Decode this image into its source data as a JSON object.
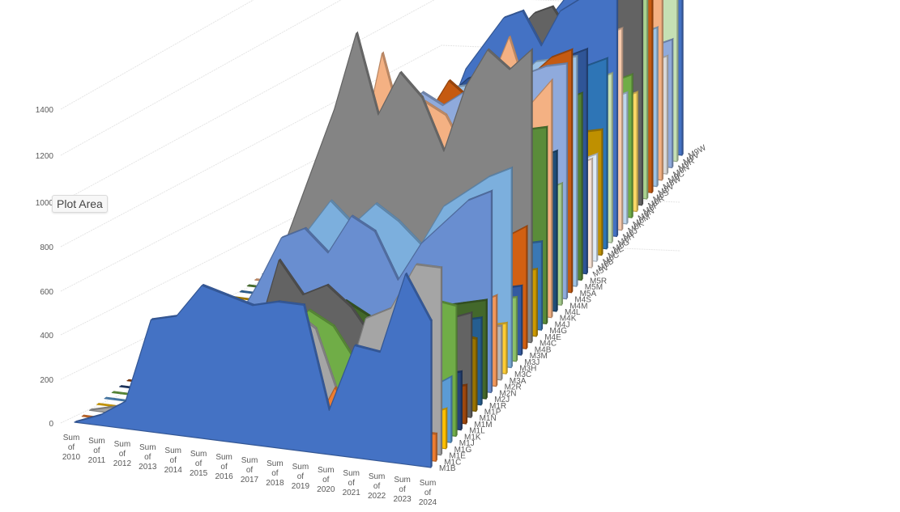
{
  "tooltip": {
    "label": "Plot Area"
  },
  "chart_data": {
    "type": "area",
    "subtype": "3d-area",
    "title": "",
    "xlabel": "",
    "ylabel": "",
    "ylim": [
      0,
      1400
    ],
    "yticks": [
      0,
      200,
      400,
      600,
      800,
      1000,
      1200,
      1400
    ],
    "grid": true,
    "legend": "none",
    "categories": [
      "Sum of 2010",
      "Sum of 2011",
      "Sum of 2012",
      "Sum of 2013",
      "Sum of 2014",
      "Sum of 2015",
      "Sum of 2016",
      "Sum of 2017",
      "Sum of 2018",
      "Sum of 2019",
      "Sum of 2020",
      "Sum of 2021",
      "Sum of 2022",
      "Sum of 2023",
      "Sum of 2024"
    ],
    "depth_labels_visible": [
      "M1B",
      "M1C",
      "M1E",
      "M1G",
      "M1J",
      "M1K",
      "M1L",
      "M1M",
      "M1N",
      "M1P",
      "M1R",
      "M2J",
      "M2N",
      "M2R",
      "M3A",
      "M3C",
      "M3H",
      "M3J",
      "M3M",
      "M4B",
      "M4C",
      "M4E",
      "M4G",
      "M4J",
      "M4K",
      "M4L",
      "M4M",
      "M4S",
      "M5A",
      "M5M",
      "M5R",
      "M5V",
      "M6B",
      "M6C",
      "M6E",
      "M6G",
      "M6H",
      "M6J",
      "M6K",
      "M6M",
      "M6N",
      "M6P",
      "M6R",
      "M6S",
      "M8V",
      "M8W",
      "M9C",
      "M9N",
      "M9R",
      "M9V",
      "M9W"
    ],
    "series": [
      {
        "name": "M1B",
        "color": "#4472C4",
        "values": [
          0,
          30,
          80,
          330,
          350,
          450,
          430,
          410,
          430,
          430,
          130,
          330,
          320,
          560,
          430
        ]
      },
      {
        "name": "M1C",
        "color": "#ED7D31",
        "values": [
          0,
          0,
          10,
          20,
          20,
          30,
          30,
          20,
          40,
          30,
          180,
          60,
          60,
          80,
          80
        ]
      },
      {
        "name": "M1E",
        "color": "#A5A5A5",
        "values": [
          0,
          20,
          60,
          180,
          190,
          330,
          360,
          300,
          380,
          330,
          120,
          380,
          420,
          560,
          560
        ]
      },
      {
        "name": "M1G",
        "color": "#FFC000",
        "values": [
          0,
          0,
          10,
          20,
          30,
          30,
          40,
          40,
          40,
          60,
          40,
          60,
          70,
          90,
          120
        ]
      },
      {
        "name": "M1J",
        "color": "#5B9BD5",
        "values": [
          0,
          0,
          10,
          30,
          40,
          60,
          60,
          50,
          70,
          80,
          60,
          90,
          110,
          150,
          200
        ]
      },
      {
        "name": "M1K",
        "color": "#70AD47",
        "values": [
          0,
          0,
          20,
          40,
          90,
          240,
          290,
          230,
          330,
          290,
          180,
          340,
          370,
          410,
          400
        ]
      },
      {
        "name": "M1L",
        "color": "#264478",
        "values": [
          0,
          0,
          10,
          20,
          30,
          60,
          80,
          90,
          100,
          120,
          110,
          140,
          140,
          160,
          180
        ]
      },
      {
        "name": "M1M",
        "color": "#9E480E",
        "values": [
          0,
          0,
          10,
          20,
          30,
          40,
          50,
          60,
          100,
          60,
          60,
          80,
          90,
          100,
          120
        ]
      },
      {
        "name": "M1N",
        "color": "#636363",
        "values": [
          0,
          0,
          10,
          30,
          80,
          150,
          420,
          320,
          360,
          300,
          200,
          280,
          330,
          300,
          330
        ]
      },
      {
        "name": "M1P",
        "color": "#997300",
        "values": [
          0,
          0,
          10,
          20,
          40,
          80,
          120,
          260,
          250,
          240,
          120,
          200,
          220,
          240,
          230
        ]
      },
      {
        "name": "M1R",
        "color": "#255E91",
        "values": [
          0,
          0,
          10,
          30,
          60,
          100,
          140,
          160,
          200,
          190,
          150,
          200,
          230,
          260,
          280
        ]
      },
      {
        "name": "M2J",
        "color": "#43682B",
        "values": [
          0,
          0,
          20,
          40,
          80,
          120,
          170,
          190,
          260,
          220,
          160,
          240,
          280,
          300,
          320
        ]
      },
      {
        "name": "M2N",
        "color": "#698ED0",
        "values": [
          0,
          0,
          40,
          120,
          260,
          420,
          460,
          390,
          520,
          480,
          330,
          460,
          540,
          620,
          660
        ]
      },
      {
        "name": "M2R",
        "color": "#F1975A",
        "values": [
          0,
          0,
          10,
          30,
          60,
          120,
          220,
          150,
          200,
          210,
          170,
          230,
          240,
          260,
          300
        ]
      },
      {
        "name": "M3A",
        "color": "#B7B7B7",
        "values": [
          0,
          0,
          10,
          20,
          40,
          80,
          110,
          100,
          120,
          130,
          90,
          130,
          150,
          170,
          180
        ]
      },
      {
        "name": "M3C",
        "color": "#FFCD33",
        "values": [
          0,
          0,
          10,
          20,
          40,
          60,
          80,
          70,
          90,
          100,
          80,
          110,
          120,
          150,
          170
        ]
      },
      {
        "name": "M3H",
        "color": "#7CAFDD",
        "values": [
          0,
          0,
          40,
          100,
          230,
          380,
          490,
          420,
          500,
          450,
          380,
          520,
          580,
          640,
          680
        ]
      },
      {
        "name": "M3J",
        "color": "#8CC168",
        "values": [
          0,
          0,
          10,
          30,
          50,
          80,
          110,
          120,
          150,
          140,
          120,
          160,
          180,
          200,
          220
        ]
      },
      {
        "name": "M3M",
        "color": "#335AA1",
        "values": [
          0,
          0,
          10,
          30,
          60,
          90,
          130,
          140,
          170,
          160,
          130,
          170,
          200,
          220,
          240
        ]
      },
      {
        "name": "M4B",
        "color": "#D26012",
        "values": [
          0,
          0,
          10,
          20,
          40,
          80,
          120,
          150,
          200,
          180,
          140,
          200,
          300,
          380,
          430
        ]
      },
      {
        "name": "M4C",
        "color": "#848484",
        "values": [
          0,
          0,
          80,
          300,
          520,
          740,
          1020,
          740,
          900,
          820,
          640,
          880,
          1020,
          960,
          1040
        ]
      },
      {
        "name": "M4E",
        "color": "#CC9A00",
        "values": [
          0,
          0,
          10,
          30,
          60,
          90,
          120,
          140,
          160,
          170,
          140,
          180,
          200,
          220,
          240
        ]
      },
      {
        "name": "M4G",
        "color": "#3A78B4",
        "values": [
          0,
          0,
          20,
          50,
          90,
          140,
          190,
          220,
          250,
          240,
          200,
          260,
          280,
          300,
          320
        ]
      },
      {
        "name": "M4J",
        "color": "#5A8C3A",
        "values": [
          0,
          0,
          30,
          80,
          160,
          300,
          540,
          620,
          480,
          560,
          500,
          600,
          660,
          700,
          720
        ]
      },
      {
        "name": "M4K",
        "color": "#F4B183",
        "values": [
          0,
          0,
          30,
          100,
          260,
          520,
          900,
          620,
          740,
          700,
          560,
          820,
          1020,
          780,
          880
        ]
      },
      {
        "name": "M4L",
        "color": "#1F4E79",
        "values": [
          0,
          0,
          20,
          60,
          120,
          220,
          300,
          360,
          420,
          400,
          340,
          460,
          520,
          560,
          600
        ]
      },
      {
        "name": "M4M",
        "color": "#A9D18E",
        "values": [
          0,
          0,
          10,
          40,
          80,
          140,
          220,
          260,
          300,
          320,
          280,
          340,
          380,
          420,
          460
        ]
      },
      {
        "name": "M4S",
        "color": "#8FAADC",
        "values": [
          0,
          0,
          30,
          120,
          260,
          460,
          640,
          720,
          680,
          740,
          620,
          780,
          840,
          880,
          900
        ]
      },
      {
        "name": "M5A",
        "color": "#C55A11",
        "values": [
          0,
          0,
          20,
          80,
          160,
          300,
          480,
          620,
          760,
          700,
          540,
          700,
          820,
          900,
          940
        ]
      },
      {
        "name": "M5M",
        "color": "#9DC3E6",
        "values": [
          0,
          0,
          20,
          90,
          200,
          380,
          560,
          640,
          720,
          740,
          640,
          780,
          860,
          880,
          900
        ]
      },
      {
        "name": "M5R",
        "color": "#548235",
        "values": [
          0,
          0,
          10,
          60,
          140,
          260,
          380,
          460,
          520,
          560,
          460,
          580,
          640,
          700,
          740
        ]
      },
      {
        "name": "M5V",
        "color": "#2F5597",
        "values": [
          0,
          0,
          20,
          80,
          200,
          380,
          560,
          640,
          720,
          760,
          660,
          780,
          820,
          860,
          900
        ]
      },
      {
        "name": "M6B",
        "color": "#FBE5D6",
        "values": [
          0,
          0,
          10,
          40,
          80,
          140,
          200,
          240,
          280,
          300,
          260,
          320,
          360,
          400,
          440
        ]
      },
      {
        "name": "M6C",
        "color": "#DEEBF7",
        "values": [
          0,
          0,
          10,
          40,
          80,
          140,
          200,
          240,
          280,
          300,
          260,
          320,
          360,
          400,
          440
        ]
      },
      {
        "name": "M6E",
        "color": "#BF9000",
        "values": [
          0,
          0,
          10,
          40,
          80,
          160,
          260,
          320,
          380,
          400,
          340,
          420,
          460,
          500,
          520
        ]
      },
      {
        "name": "M6G",
        "color": "#2E75B6",
        "values": [
          0,
          0,
          20,
          80,
          180,
          320,
          480,
          560,
          620,
          660,
          580,
          680,
          720,
          760,
          800
        ]
      },
      {
        "name": "M6H",
        "color": "#C5E0B4",
        "values": [
          0,
          0,
          10,
          60,
          140,
          260,
          380,
          460,
          520,
          560,
          480,
          580,
          620,
          680,
          720
        ]
      },
      {
        "name": "M6J",
        "color": "#4472C4",
        "values": [
          0,
          0,
          20,
          80,
          200,
          420,
          640,
          760,
          880,
          920,
          780,
          940,
          1000,
          1080,
          1120
        ]
      },
      {
        "name": "M6K",
        "color": "#F8CBAD",
        "values": [
          0,
          0,
          20,
          60,
          160,
          300,
          460,
          560,
          640,
          700,
          600,
          720,
          780,
          840,
          880
        ]
      },
      {
        "name": "M6M",
        "color": "#BDD7EE",
        "values": [
          0,
          0,
          10,
          40,
          100,
          180,
          280,
          340,
          400,
          440,
          380,
          460,
          500,
          540,
          580
        ]
      },
      {
        "name": "M6N",
        "color": "#70AD47",
        "values": [
          0,
          0,
          10,
          40,
          100,
          200,
          320,
          400,
          460,
          500,
          420,
          520,
          560,
          600,
          640
        ]
      },
      {
        "name": "M6P",
        "color": "#FFD966",
        "values": [
          0,
          0,
          10,
          40,
          80,
          160,
          240,
          300,
          360,
          400,
          340,
          420,
          460,
          500,
          540
        ]
      },
      {
        "name": "M6R",
        "color": "#636363",
        "values": [
          0,
          0,
          20,
          80,
          200,
          380,
          600,
          720,
          820,
          860,
          740,
          880,
          940,
          980,
          1000
        ]
      },
      {
        "name": "M6S",
        "color": "#A9D18E",
        "values": [
          0,
          0,
          20,
          80,
          180,
          340,
          520,
          620,
          700,
          760,
          660,
          780,
          840,
          900,
          940
        ]
      },
      {
        "name": "M8V",
        "color": "#C55A11",
        "values": [
          0,
          0,
          20,
          80,
          180,
          340,
          520,
          640,
          740,
          780,
          680,
          800,
          860,
          900,
          940
        ]
      },
      {
        "name": "M8W",
        "color": "#9DC3E6",
        "values": [
          0,
          0,
          20,
          60,
          140,
          260,
          400,
          480,
          560,
          600,
          520,
          620,
          680,
          720,
          760
        ]
      },
      {
        "name": "M9C",
        "color": "#F4B183",
        "values": [
          0,
          0,
          20,
          80,
          180,
          340,
          520,
          620,
          700,
          740,
          640,
          760,
          820,
          880,
          920
        ]
      },
      {
        "name": "M9N",
        "color": "#D9D9D9",
        "values": [
          0,
          0,
          10,
          40,
          100,
          180,
          280,
          340,
          400,
          440,
          380,
          460,
          500,
          540,
          580
        ]
      },
      {
        "name": "M9R",
        "color": "#8FAADC",
        "values": [
          0,
          0,
          10,
          40,
          100,
          200,
          320,
          400,
          460,
          500,
          440,
          520,
          560,
          600,
          640
        ]
      },
      {
        "name": "M9V",
        "color": "#C5E0B4",
        "values": [
          0,
          0,
          20,
          80,
          180,
          340,
          520,
          620,
          700,
          740,
          640,
          760,
          800,
          840,
          880
        ]
      },
      {
        "name": "M9W",
        "color": "#4472C4",
        "values": [
          0,
          0,
          20,
          80,
          200,
          400,
          620,
          740,
          820,
          860,
          760,
          880,
          940,
          980,
          1000
        ]
      }
    ]
  }
}
